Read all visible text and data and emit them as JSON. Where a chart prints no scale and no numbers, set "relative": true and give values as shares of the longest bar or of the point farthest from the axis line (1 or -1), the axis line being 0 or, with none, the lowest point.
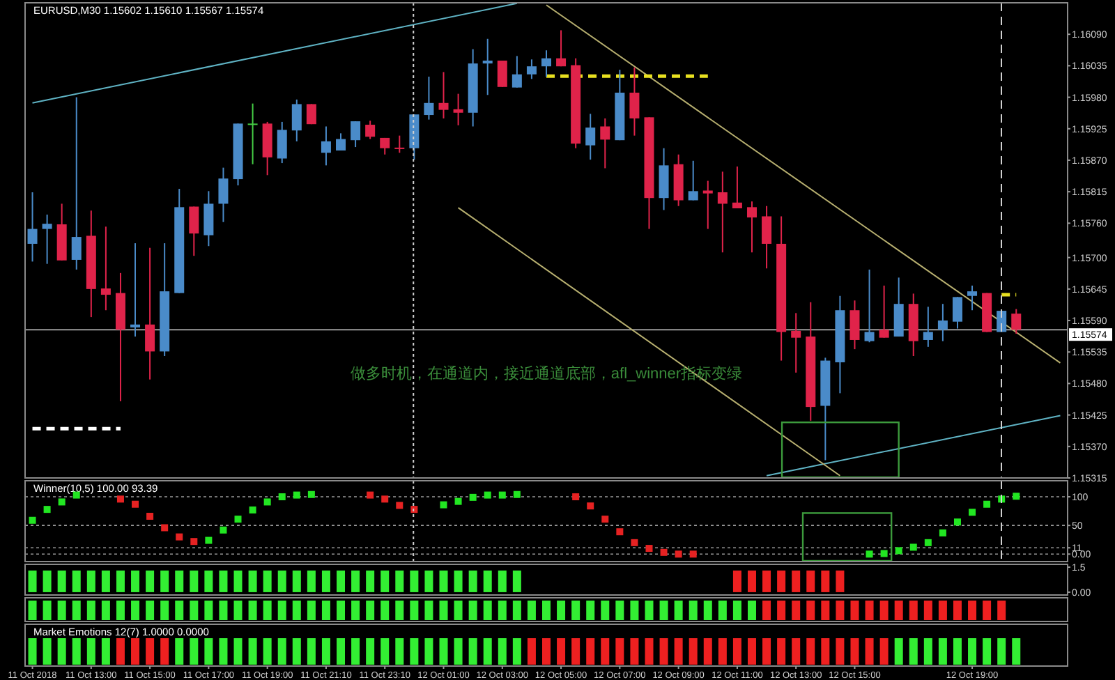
{
  "chart_data": [
    {
      "type": "candlestick",
      "title": "EURUSD,M30  1.15602 1.15610 1.15567 1.15574",
      "tick_labels": "y",
      "categories": [
        null,
        null,
        null,
        null,
        null,
        null,
        null,
        null,
        null,
        null,
        null,
        null,
        null,
        null,
        null,
        null,
        null,
        null,
        null,
        null,
        null,
        null,
        null,
        null,
        null,
        null,
        null,
        null,
        null,
        null,
        null,
        null,
        null,
        null,
        null,
        null,
        null,
        null,
        null,
        null,
        null,
        null,
        null,
        null,
        null,
        null,
        null,
        null,
        null,
        null,
        null,
        null,
        null,
        null,
        null,
        null,
        null,
        null,
        null,
        null,
        null,
        null,
        null,
        null,
        null,
        null,
        null,
        null,
        null,
        null,
        null
      ],
      "ohlc": [
        [
          1.15724,
          1.15814,
          1.15693,
          1.1575
        ],
        [
          1.1575,
          1.15775,
          1.15689,
          1.15759
        ],
        [
          1.15758,
          1.15794,
          1.15695,
          1.15695
        ],
        [
          1.15696,
          1.1598,
          1.15679,
          1.15736
        ],
        [
          1.15738,
          1.15782,
          1.15596,
          1.15645
        ],
        [
          1.15646,
          1.15754,
          1.15608,
          1.15635
        ],
        [
          1.15638,
          1.15673,
          1.15449,
          1.15574
        ],
        [
          1.15578,
          1.15725,
          1.15562,
          1.15583
        ],
        [
          1.15583,
          1.15717,
          1.15487,
          1.15536
        ],
        [
          1.15536,
          1.15725,
          1.15528,
          1.15641
        ],
        [
          1.15638,
          1.1582,
          1.15638,
          1.15788
        ],
        [
          1.15789,
          1.15789,
          1.15703,
          1.15742
        ],
        [
          1.15739,
          1.15816,
          1.1572,
          1.15794
        ],
        [
          1.15794,
          1.15857,
          1.15762,
          1.15838
        ],
        [
          1.15837,
          1.15934,
          1.15826,
          1.15934
        ],
        [
          1.15934,
          1.15969,
          1.15863,
          1.15934
        ],
        [
          1.15934,
          1.15937,
          1.15844,
          1.15875
        ],
        [
          1.15873,
          1.15937,
          1.15865,
          1.15923
        ],
        [
          1.15922,
          1.15976,
          1.15903,
          1.15968
        ],
        [
          1.15968,
          1.15968,
          1.15933,
          1.15933
        ],
        [
          1.15883,
          1.15929,
          1.15861,
          1.15903
        ],
        [
          1.15887,
          1.15917,
          1.15887,
          1.15907
        ],
        [
          1.15905,
          1.15938,
          1.15893,
          1.15938
        ],
        [
          1.15932,
          1.15939,
          1.15907,
          1.15911
        ],
        [
          1.15909,
          1.15909,
          1.1588,
          1.15891
        ],
        [
          1.15892,
          1.15913,
          1.15883,
          1.1589
        ],
        [
          1.15891,
          1.1595,
          1.15871,
          1.1595
        ],
        [
          1.15949,
          1.16016,
          1.15941,
          1.1597
        ],
        [
          1.1597,
          1.16024,
          1.15943,
          1.15958
        ],
        [
          1.15959,
          1.15986,
          1.15931,
          1.15953
        ],
        [
          1.15953,
          1.16064,
          1.15929,
          1.16039
        ],
        [
          1.16039,
          1.16082,
          1.15984,
          1.16044
        ],
        [
          1.16044,
          1.16044,
          1.15998,
          1.15998
        ],
        [
          1.15997,
          1.16052,
          1.15997,
          1.1602
        ],
        [
          1.1602,
          1.16046,
          1.16012,
          1.16034
        ],
        [
          1.16034,
          1.16062,
          1.16016,
          1.16048
        ],
        [
          1.16048,
          1.16097,
          1.16034,
          1.16034
        ],
        [
          1.16036,
          1.16048,
          1.15891,
          1.15899
        ],
        [
          1.15896,
          1.15951,
          1.15871,
          1.15927
        ],
        [
          1.15929,
          1.15943,
          1.15856,
          1.15906
        ],
        [
          1.15905,
          1.16028,
          1.15905,
          1.15988
        ],
        [
          1.15988,
          1.16032,
          1.15913,
          1.15943
        ],
        [
          1.15945,
          1.15945,
          1.1575,
          1.15804
        ],
        [
          1.15804,
          1.15891,
          1.15783,
          1.15861
        ],
        [
          1.15863,
          1.1588,
          1.1579,
          1.158
        ],
        [
          1.158,
          1.15869,
          1.158,
          1.15816
        ],
        [
          1.15817,
          1.15834,
          1.1575,
          1.15812
        ],
        [
          1.15814,
          1.1585,
          1.15709,
          1.15794
        ],
        [
          1.15796,
          1.15859,
          1.15786,
          1.15786
        ],
        [
          1.15788,
          1.15798,
          1.15709,
          1.1577
        ],
        [
          1.15772,
          1.1579,
          1.15681,
          1.15724
        ],
        [
          1.15724,
          1.15772,
          1.1552,
          1.1557
        ],
        [
          1.15572,
          1.15603,
          1.15499,
          1.1556
        ],
        [
          1.15562,
          1.15622,
          1.15415,
          1.15439
        ],
        [
          1.15441,
          1.15525,
          1.15346,
          1.1552
        ],
        [
          1.15517,
          1.15633,
          1.15463,
          1.15608
        ],
        [
          1.15608,
          1.15625,
          1.1554,
          1.15556
        ],
        [
          1.15554,
          1.15679,
          1.15552,
          1.1557
        ],
        [
          1.15574,
          1.15651,
          1.1556,
          1.1556
        ],
        [
          1.15562,
          1.15665,
          1.15562,
          1.15619
        ],
        [
          1.15619,
          1.15637,
          1.15528,
          1.15554
        ],
        [
          1.15556,
          1.15614,
          1.15544,
          1.1557
        ],
        [
          1.15574,
          1.15619,
          1.15554,
          1.1559
        ],
        [
          1.15588,
          1.15631,
          1.15576,
          1.15631
        ],
        [
          1.15633,
          1.15651,
          1.15608,
          1.15641
        ],
        [
          1.15638,
          1.15638,
          1.1557,
          1.1557
        ],
        [
          1.1557,
          1.15607,
          1.1557,
          1.15607
        ],
        [
          1.15602,
          1.1561,
          1.15567,
          1.15574
        ],
        null,
        null,
        null
      ],
      "colors": [
        "#4a8bc9",
        "#4a8bc9",
        "#e0234a",
        "#4a8bc9",
        "#e0234a",
        "#e0234a",
        "#e0234a",
        "#4a8bc9",
        "#e0234a",
        "#4a8bc9",
        "#4a8bc9",
        "#e0234a",
        "#4a8bc9",
        "#4a8bc9",
        "#4a8bc9",
        "#44cc44",
        "#e0234a",
        "#4a8bc9",
        "#4a8bc9",
        "#e0234a",
        "#4a8bc9",
        "#4a8bc9",
        "#4a8bc9",
        "#e0234a",
        "#e0234a",
        "#e0234a",
        "#4a8bc9",
        "#4a8bc9",
        "#e0234a",
        "#e0234a",
        "#4a8bc9",
        "#4a8bc9",
        "#e0234a",
        "#4a8bc9",
        "#4a8bc9",
        "#4a8bc9",
        "#e0234a",
        "#e0234a",
        "#4a8bc9",
        "#e0234a",
        "#4a8bc9",
        "#e0234a",
        "#e0234a",
        "#4a8bc9",
        "#e0234a",
        "#4a8bc9",
        "#e0234a",
        "#e0234a",
        "#e0234a",
        "#e0234a",
        "#e0234a",
        "#e0234a",
        "#e0234a",
        "#e0234a",
        "#4a8bc9",
        "#4a8bc9",
        "#e0234a",
        "#4a8bc9",
        "#e0234a",
        "#4a8bc9",
        "#e0234a",
        "#4a8bc9",
        "#4a8bc9",
        "#4a8bc9",
        "#4a8bc9",
        "#e0234a",
        "#4a8bc9",
        "#e0234a",
        null,
        null,
        null
      ],
      "ylim": [
        1.15315,
        1.16145
      ],
      "yticks": [
        {
          "value": 1.15315,
          "label": "1.15315"
        },
        {
          "value": 1.1537,
          "label": "1.15370"
        },
        {
          "value": 1.15425,
          "label": "1.15425"
        },
        {
          "value": 1.1548,
          "label": "1.15480"
        },
        {
          "value": 1.15535,
          "label": "1.15535"
        },
        {
          "value": 1.1559,
          "label": "1.15590"
        },
        {
          "value": 1.15645,
          "label": "1.15645"
        },
        {
          "value": 1.157,
          "label": "1.15700"
        },
        {
          "value": 1.1576,
          "label": "1.15760"
        },
        {
          "value": 1.15815,
          "label": "1.15815"
        },
        {
          "value": 1.1587,
          "label": "1.15870"
        },
        {
          "value": 1.15925,
          "label": "1.15925"
        },
        {
          "value": 1.1598,
          "label": "1.15980"
        },
        {
          "value": 1.16035,
          "label": "1.16035"
        },
        {
          "value": 1.1609,
          "label": "1.16090"
        }
      ],
      "series": [
        {
          "type": "line",
          "color": "#5fb3c4",
          "values": [
            1.1597,
            null,
            null,
            null,
            null,
            null,
            null,
            null,
            null,
            null,
            null,
            null,
            null,
            null,
            null,
            null,
            null,
            null,
            null,
            null,
            null,
            null,
            null,
            null,
            null,
            null,
            null,
            null,
            null,
            null,
            null,
            null,
            null,
            1.16144,
            null,
            null,
            null,
            null,
            null,
            null,
            null,
            null,
            null,
            null,
            null,
            null,
            null,
            null,
            null,
            null,
            null,
            null,
            null,
            null,
            null,
            null,
            null,
            null,
            null,
            null,
            null,
            null,
            null,
            null,
            null,
            null,
            null,
            null,
            null,
            null,
            null
          ]
        },
        {
          "type": "line",
          "color": "#5fb3c4",
          "values": [
            null,
            null,
            null,
            null,
            null,
            null,
            null,
            null,
            null,
            null,
            null,
            null,
            null,
            null,
            null,
            null,
            null,
            null,
            null,
            null,
            null,
            null,
            null,
            null,
            null,
            null,
            null,
            null,
            null,
            null,
            null,
            null,
            null,
            null,
            null,
            null,
            null,
            null,
            null,
            null,
            null,
            null,
            null,
            null,
            null,
            null,
            null,
            null,
            null,
            null,
            1.15319,
            null,
            null,
            null,
            null,
            null,
            null,
            null,
            null,
            null,
            null,
            null,
            null,
            null,
            null,
            null,
            null,
            null,
            null,
            null,
            1.15424
          ]
        },
        {
          "type": "line",
          "color": "#b8b070",
          "values": [
            null,
            null,
            null,
            null,
            null,
            null,
            null,
            null,
            null,
            null,
            null,
            null,
            null,
            null,
            null,
            null,
            null,
            null,
            null,
            null,
            null,
            null,
            null,
            null,
            null,
            null,
            null,
            null,
            null,
            null,
            null,
            null,
            null,
            null,
            null,
            1.16141,
            null,
            null,
            null,
            null,
            null,
            null,
            null,
            null,
            null,
            null,
            null,
            null,
            null,
            null,
            null,
            null,
            null,
            null,
            null,
            null,
            null,
            null,
            null,
            null,
            null,
            null,
            null,
            null,
            null,
            null,
            null,
            null,
            null,
            null,
            1.15516
          ]
        },
        {
          "type": "line",
          "color": "#b8b070",
          "values": [
            null,
            null,
            null,
            null,
            null,
            null,
            null,
            null,
            null,
            null,
            null,
            null,
            null,
            null,
            null,
            null,
            null,
            null,
            null,
            null,
            null,
            null,
            null,
            null,
            null,
            null,
            null,
            null,
            null,
            1.15787,
            null,
            null,
            null,
            null,
            null,
            null,
            null,
            null,
            null,
            null,
            null,
            null,
            null,
            null,
            null,
            null,
            null,
            null,
            null,
            null,
            null,
            null,
            null,
            null,
            null,
            1.15319,
            null,
            null,
            null,
            null,
            null,
            null,
            null,
            null,
            null,
            null,
            null,
            null,
            null,
            null,
            null
          ]
        },
        {
          "type": "line",
          "color": "#ffffff",
          "line_style": "dashed",
          "values": [
            1.15401,
            null,
            null,
            null,
            null,
            null,
            1.15401,
            null,
            null,
            null,
            null,
            null,
            null,
            null,
            null,
            null,
            null,
            null,
            null,
            null,
            null,
            null,
            null,
            null,
            null,
            null,
            null,
            null,
            null,
            null,
            null,
            null,
            null,
            null,
            null,
            null,
            null,
            null,
            null,
            null,
            null,
            null,
            null,
            null,
            null,
            null,
            null,
            null,
            null,
            null,
            null,
            null,
            null,
            null,
            null,
            null,
            null,
            null,
            null,
            null,
            null,
            null,
            null,
            null,
            null,
            null,
            null,
            null,
            null,
            null,
            null
          ]
        },
        {
          "type": "line",
          "color": "#e8e020",
          "line_style": "dashed",
          "values": [
            null,
            null,
            null,
            null,
            null,
            null,
            null,
            null,
            null,
            null,
            null,
            null,
            null,
            null,
            null,
            null,
            null,
            null,
            null,
            null,
            null,
            null,
            null,
            null,
            null,
            null,
            null,
            null,
            null,
            null,
            null,
            null,
            null,
            null,
            null,
            1.16017,
            null,
            null,
            null,
            null,
            null,
            null,
            null,
            null,
            null,
            null,
            1.16017,
            null,
            null,
            null,
            null,
            null,
            null,
            null,
            null,
            null,
            null,
            null,
            null,
            null,
            null,
            null,
            null,
            null,
            null,
            null,
            null,
            null,
            null,
            null,
            null
          ]
        },
        {
          "type": "line",
          "color": "#e8e020",
          "line_style": "dashed",
          "values": [
            null,
            null,
            null,
            null,
            null,
            null,
            null,
            null,
            null,
            null,
            null,
            null,
            null,
            null,
            null,
            null,
            null,
            null,
            null,
            null,
            null,
            null,
            null,
            null,
            null,
            null,
            null,
            null,
            null,
            null,
            null,
            null,
            null,
            null,
            null,
            null,
            null,
            null,
            null,
            null,
            null,
            null,
            null,
            null,
            null,
            null,
            null,
            null,
            null,
            null,
            null,
            null,
            null,
            null,
            null,
            null,
            null,
            null,
            null,
            null,
            null,
            null,
            null,
            null,
            null,
            null,
            1.15635,
            1.15635,
            null,
            null,
            null
          ]
        }
      ],
      "ref_lines": [
        {
          "axis": "y",
          "value": 1.15574,
          "label": "1.15574",
          "color": "#9a9a9a"
        }
      ],
      "annotations": [
        "做多时机，在通道内，接近通道底部，afl_winner指标变绿"
      ]
    },
    {
      "type": "scatter",
      "title": "Winner(10,5) 100.00 93.39",
      "tick_labels": "y",
      "marker": "square",
      "grid": "y",
      "categories": [
        null,
        null,
        null,
        null,
        null,
        null,
        null,
        null,
        null,
        null,
        null,
        null,
        null,
        null,
        null,
        null,
        null,
        null,
        null,
        null,
        null,
        null,
        null,
        null,
        null,
        null,
        null,
        null,
        null,
        null,
        null,
        null,
        null,
        null,
        null,
        null,
        null,
        null,
        null,
        null,
        null,
        null,
        null,
        null,
        null,
        null,
        null,
        null,
        null,
        null,
        null,
        null,
        null,
        null,
        null,
        null,
        null,
        null,
        null,
        null,
        null,
        null,
        null,
        null,
        null,
        null,
        null,
        null,
        null,
        null,
        null
      ],
      "values": [
        59,
        78,
        91,
        103,
        null,
        null,
        96,
        87,
        66,
        46,
        30,
        22,
        24,
        42,
        61,
        77,
        91,
        100,
        103,
        104,
        null,
        null,
        null,
        103,
        96,
        85,
        78,
        null,
        86,
        92,
        99,
        103,
        103,
        104,
        null,
        null,
        null,
        100,
        84,
        61,
        39,
        20,
        10,
        3,
        0,
        0,
        null,
        null,
        null,
        null,
        null,
        null,
        null,
        null,
        null,
        null,
        null,
        0,
        1,
        6,
        12,
        20,
        37,
        56,
        73,
        87,
        96,
        101,
        null,
        null,
        null
      ],
      "colors": [
        "#22e622",
        "#22e622",
        "#22e622",
        "#22e622",
        null,
        null,
        "#e62222",
        "#e62222",
        "#e62222",
        "#e62222",
        "#e62222",
        "#e62222",
        "#22e622",
        "#22e622",
        "#22e622",
        "#22e622",
        "#22e622",
        "#22e622",
        "#22e622",
        "#22e622",
        null,
        null,
        null,
        "#e62222",
        "#e62222",
        "#e62222",
        "#e62222",
        null,
        "#22e622",
        "#22e622",
        "#22e622",
        "#22e622",
        "#22e622",
        "#22e622",
        null,
        null,
        null,
        "#e62222",
        "#e62222",
        "#e62222",
        "#e62222",
        "#e62222",
        "#e62222",
        "#e62222",
        "#e62222",
        "#e62222",
        null,
        null,
        null,
        null,
        null,
        null,
        null,
        null,
        null,
        null,
        null,
        "#22e622",
        "#22e622",
        "#22e622",
        "#22e622",
        "#22e622",
        "#22e622",
        "#22e622",
        "#22e622",
        "#22e622",
        "#22e622",
        "#22e622",
        null,
        null,
        null
      ],
      "ylim": [
        -13,
        128
      ],
      "yticks": [
        {
          "value": 100,
          "label": "100"
        },
        50,
        11,
        {
          "value": 0,
          "label": "0.00"
        }
      ]
    },
    {
      "type": "bar",
      "tick_labels": "y",
      "categories": [
        null,
        null,
        null,
        null,
        null,
        null,
        null,
        null,
        null,
        null,
        null,
        null,
        null,
        null,
        null,
        null,
        null,
        null,
        null,
        null,
        null,
        null,
        null,
        null,
        null,
        null,
        null,
        null,
        null,
        null,
        null,
        null,
        null,
        null,
        null,
        null,
        null,
        null,
        null,
        null,
        null,
        null,
        null,
        null,
        null,
        null,
        null,
        null,
        null,
        null,
        null,
        null,
        null,
        null,
        null,
        null,
        null,
        null,
        null,
        null,
        null,
        null,
        null,
        null,
        null,
        null,
        null,
        null,
        null,
        null,
        null
      ],
      "values": [
        1.3,
        1.3,
        1.3,
        1.3,
        1.3,
        1.3,
        1.3,
        1.3,
        1.3,
        1.3,
        1.3,
        1.3,
        1.3,
        1.3,
        1.3,
        1.3,
        1.3,
        1.3,
        1.3,
        1.3,
        1.3,
        1.3,
        1.3,
        1.3,
        1.3,
        1.3,
        1.3,
        1.3,
        1.3,
        1.3,
        1.3,
        1.3,
        1.3,
        1.3,
        null,
        null,
        null,
        null,
        null,
        null,
        null,
        null,
        null,
        null,
        null,
        null,
        null,
        null,
        1.3,
        1.3,
        1.3,
        1.3,
        1.3,
        1.3,
        1.3,
        1.3,
        null,
        null,
        null,
        null,
        null,
        null,
        null,
        null,
        null,
        null,
        null,
        null,
        null,
        null,
        null
      ],
      "colors": [
        "#33ee33",
        "#33ee33",
        "#33ee33",
        "#33ee33",
        "#33ee33",
        "#33ee33",
        "#33ee33",
        "#33ee33",
        "#33ee33",
        "#33ee33",
        "#33ee33",
        "#33ee33",
        "#33ee33",
        "#33ee33",
        "#33ee33",
        "#33ee33",
        "#33ee33",
        "#33ee33",
        "#33ee33",
        "#33ee33",
        "#33ee33",
        "#33ee33",
        "#33ee33",
        "#33ee33",
        "#33ee33",
        "#33ee33",
        "#33ee33",
        "#33ee33",
        "#33ee33",
        "#33ee33",
        "#33ee33",
        "#33ee33",
        "#33ee33",
        "#33ee33",
        null,
        null,
        null,
        null,
        null,
        null,
        null,
        null,
        null,
        null,
        null,
        null,
        null,
        null,
        "#ee2020",
        "#ee2020",
        "#ee2020",
        "#ee2020",
        "#ee2020",
        "#ee2020",
        "#ee2020",
        "#ee2020",
        null,
        null,
        null,
        null,
        null,
        null,
        null,
        null,
        null,
        null,
        null,
        null,
        null,
        null,
        null
      ],
      "ylim": [
        -0.17,
        1.67
      ],
      "yticks": [
        1.5,
        {
          "value": 0,
          "label": "0.00"
        }
      ]
    },
    {
      "type": "bar",
      "relative": true,
      "tick_labels": false,
      "categories": [
        null,
        null,
        null,
        null,
        null,
        null,
        null,
        null,
        null,
        null,
        null,
        null,
        null,
        null,
        null,
        null,
        null,
        null,
        null,
        null,
        null,
        null,
        null,
        null,
        null,
        null,
        null,
        null,
        null,
        null,
        null,
        null,
        null,
        null,
        null,
        null,
        null,
        null,
        null,
        null,
        null,
        null,
        null,
        null,
        null,
        null,
        null,
        null,
        null,
        null,
        null,
        null,
        null,
        null,
        null,
        null,
        null,
        null,
        null,
        null,
        null,
        null,
        null,
        null,
        null,
        null,
        null,
        null,
        null,
        null,
        null
      ],
      "values": [
        1,
        1,
        1,
        1,
        1,
        1,
        1,
        1,
        1,
        1,
        1,
        1,
        1,
        1,
        1,
        1,
        1,
        1,
        1,
        1,
        1,
        1,
        1,
        1,
        1,
        1,
        1,
        1,
        1,
        1,
        1,
        1,
        1,
        1,
        1,
        1,
        1,
        1,
        1,
        1,
        1,
        1,
        1,
        1,
        1,
        1,
        1,
        1,
        1,
        1,
        1,
        1,
        1,
        1,
        1,
        1,
        1,
        1,
        1,
        1,
        1,
        1,
        1,
        1,
        1,
        1,
        1,
        null,
        null,
        null,
        null
      ],
      "colors": [
        "#33ee33",
        "#33ee33",
        "#33ee33",
        "#33ee33",
        "#33ee33",
        "#33ee33",
        "#33ee33",
        "#33ee33",
        "#33ee33",
        "#33ee33",
        "#33ee33",
        "#33ee33",
        "#33ee33",
        "#33ee33",
        "#33ee33",
        "#33ee33",
        "#33ee33",
        "#33ee33",
        "#33ee33",
        "#33ee33",
        "#33ee33",
        "#33ee33",
        "#33ee33",
        "#33ee33",
        "#33ee33",
        "#33ee33",
        "#33ee33",
        "#33ee33",
        "#33ee33",
        "#33ee33",
        "#33ee33",
        "#33ee33",
        "#33ee33",
        "#33ee33",
        "#33ee33",
        "#33ee33",
        "#33ee33",
        "#33ee33",
        "#33ee33",
        "#33ee33",
        "#33ee33",
        "#33ee33",
        "#33ee33",
        "#33ee33",
        "#33ee33",
        "#33ee33",
        "#33ee33",
        "#33ee33",
        "#33ee33",
        "#33ee33",
        "#ee2020",
        "#ee2020",
        "#ee2020",
        "#ee2020",
        "#ee2020",
        "#ee2020",
        "#ee2020",
        "#ee2020",
        "#ee2020",
        "#ee2020",
        "#ee2020",
        "#ee2020",
        "#ee2020",
        "#ee2020",
        "#ee2020",
        "#ee2020",
        "#ee2020",
        null,
        null,
        null,
        null
      ]
    },
    {
      "type": "bar",
      "relative": true,
      "title": "Market Emotions 12(7) 1.0000 0.0000",
      "tick_labels": "x",
      "categories": [
        "11 Oct 2018",
        null,
        null,
        null,
        "11 Oct 13:00",
        null,
        null,
        null,
        "11 Oct 15:00",
        null,
        null,
        null,
        "11 Oct 17:00",
        null,
        null,
        null,
        "11 Oct 19:00",
        null,
        null,
        null,
        "11 Oct 21:10",
        null,
        null,
        null,
        "11 Oct 23:10",
        null,
        null,
        null,
        "12 Oct 01:00",
        null,
        null,
        null,
        "12 Oct 03:00",
        null,
        null,
        null,
        "12 Oct 05:00",
        null,
        null,
        null,
        "12 Oct 07:00",
        null,
        null,
        null,
        "12 Oct 09:00",
        null,
        null,
        null,
        "12 Oct 11:00",
        null,
        null,
        null,
        "12 Oct 13:00",
        null,
        null,
        null,
        "12 Oct 15:00",
        null,
        null,
        null,
        null,
        null,
        null,
        null,
        "12 Oct 19:00",
        null,
        null,
        null,
        null,
        null,
        null
      ],
      "values": [
        1,
        1,
        1,
        1,
        1,
        1,
        1,
        1,
        1,
        1,
        1,
        1,
        1,
        1,
        1,
        1,
        1,
        1,
        1,
        1,
        1,
        1,
        1,
        1,
        1,
        1,
        1,
        1,
        1,
        1,
        1,
        1,
        1,
        1,
        1,
        1,
        1,
        1,
        1,
        1,
        1,
        1,
        1,
        1,
        1,
        1,
        1,
        1,
        1,
        1,
        1,
        1,
        1,
        1,
        1,
        1,
        1,
        1,
        1,
        1,
        1,
        1,
        1,
        1,
        1,
        1,
        1,
        1,
        null,
        null,
        null
      ],
      "colors": [
        "#33ee33",
        "#33ee33",
        "#33ee33",
        "#33ee33",
        "#33ee33",
        "#33ee33",
        "#ee2020",
        "#ee2020",
        "#ee2020",
        "#ee2020",
        "#33ee33",
        "#33ee33",
        "#33ee33",
        "#33ee33",
        "#33ee33",
        "#33ee33",
        "#33ee33",
        "#33ee33",
        "#33ee33",
        "#33ee33",
        "#33ee33",
        "#33ee33",
        "#33ee33",
        "#33ee33",
        "#33ee33",
        "#33ee33",
        "#33ee33",
        "#33ee33",
        "#33ee33",
        "#33ee33",
        "#33ee33",
        "#33ee33",
        "#33ee33",
        "#33ee33",
        "#ee2020",
        "#ee2020",
        "#ee2020",
        "#ee2020",
        "#ee2020",
        "#ee2020",
        "#ee2020",
        "#ee2020",
        "#ee2020",
        "#ee2020",
        "#ee2020",
        "#ee2020",
        "#ee2020",
        "#ee2020",
        "#ee2020",
        "#ee2020",
        "#ee2020",
        "#ee2020",
        "#ee2020",
        "#ee2020",
        "#ee2020",
        "#ee2020",
        "#ee2020",
        "#ee2020",
        "#ee2020",
        "#33ee33",
        "#33ee33",
        "#33ee33",
        "#33ee33",
        "#33ee33",
        "#33ee33",
        "#33ee33",
        "#33ee33",
        "#33ee33",
        null,
        null,
        null
      ]
    }
  ]
}
